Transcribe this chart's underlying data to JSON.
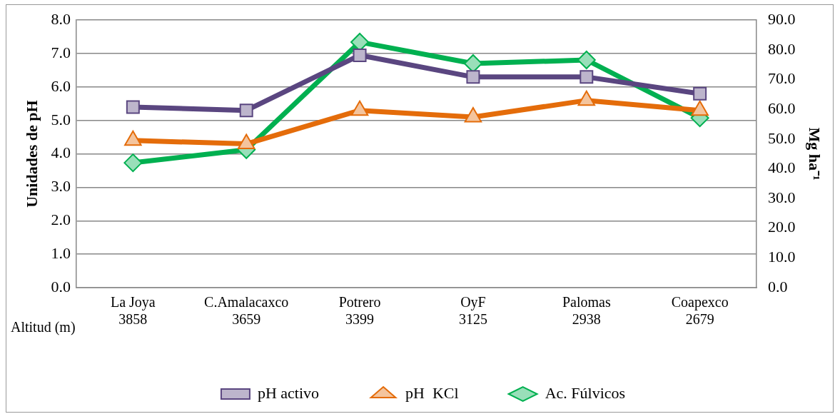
{
  "chart_data": {
    "type": "line",
    "categories": [
      "La Joya\n3858",
      "C.Amalacaxco\n3659",
      "Potrero\n3399",
      "OyF\n3125",
      "Palomas\n2938",
      "Coapexco\n2679"
    ],
    "ylabel": "Unidades de pH",
    "y2label": "Mg ha⁻¹",
    "annotations": [
      "Altitud (m)"
    ],
    "series": [
      {
        "name": "pH activo",
        "color": "#5a4680",
        "marker": "square",
        "values": [
          5.4,
          5.3,
          6.95,
          6.3,
          6.3,
          5.8
        ]
      },
      {
        "name": "pH  KCl",
        "color": "#e46c0a",
        "marker": "triangle",
        "values": [
          4.4,
          4.3,
          5.3,
          5.1,
          5.6,
          5.3
        ]
      },
      {
        "name": "Ac. Fúlvicos",
        "color": "#00b050",
        "marker": "diamond",
        "axis": "y2",
        "values": [
          42.0,
          46.4,
          82.6,
          75.4,
          76.6,
          57.1
        ]
      }
    ],
    "ylim": [
      0,
      8
    ],
    "yticks": [
      {
        "value": 0,
        "label": "0.0"
      },
      {
        "value": 1,
        "label": "1.0"
      },
      {
        "value": 2,
        "label": "2.0"
      },
      {
        "value": 3,
        "label": "3.0"
      },
      {
        "value": 4,
        "label": "4.0"
      },
      {
        "value": 5,
        "label": "5.0"
      },
      {
        "value": 6,
        "label": "6.0"
      },
      {
        "value": 7,
        "label": "7.0"
      },
      {
        "value": 8,
        "label": "8.0"
      }
    ],
    "y2lim": [
      0,
      90
    ],
    "y2ticks": [
      {
        "value": 0,
        "label": "0.0"
      },
      {
        "value": 10,
        "label": "10.0"
      },
      {
        "value": 20,
        "label": "20.0"
      },
      {
        "value": 30,
        "label": "30.0"
      },
      {
        "value": 40,
        "label": "40.0"
      },
      {
        "value": 50,
        "label": "50.0"
      },
      {
        "value": 60,
        "label": "60.0"
      },
      {
        "value": 70,
        "label": "70.0"
      },
      {
        "value": 80,
        "label": "80.0"
      },
      {
        "value": 90,
        "label": "90.0"
      }
    ],
    "grid": "y",
    "legend": "bottom",
    "line_style": "solid"
  }
}
